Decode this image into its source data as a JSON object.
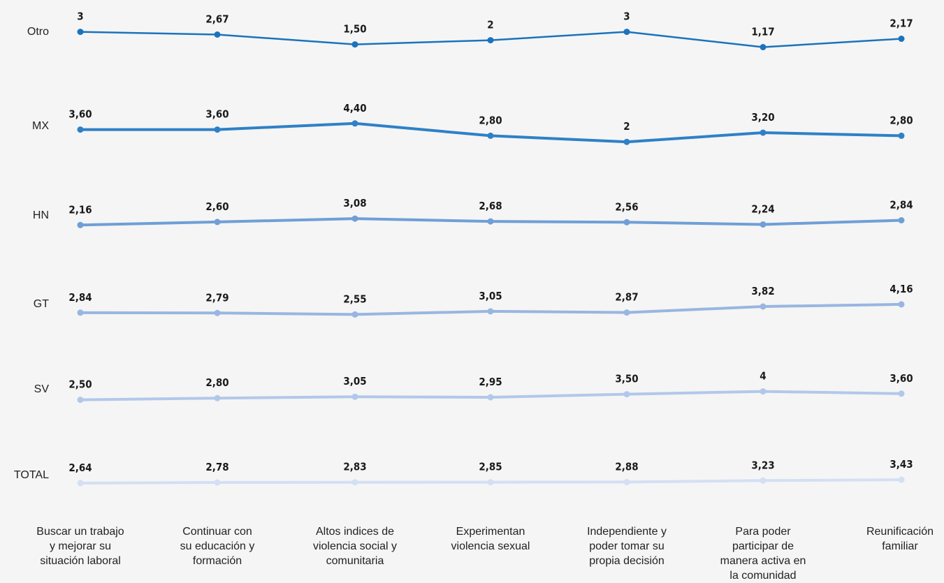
{
  "chart_data": {
    "type": "line",
    "title": "",
    "xlabel": "",
    "ylabel": "",
    "grid": false,
    "legend": "none",
    "categories": [
      [
        "Buscar un trabajo",
        "y mejorar su",
        "situación laboral"
      ],
      [
        "Continuar con",
        "su educación y",
        "formación"
      ],
      [
        "Altos indices de",
        "violencia social y",
        "comunitaria"
      ],
      [
        "Experimentan",
        "violencia sexual"
      ],
      [
        "Independiente y",
        "poder tomar su",
        "propia decisión"
      ],
      [
        "Para poder",
        "participar de",
        "manera activa en",
        "la comunidad"
      ],
      [
        "Reunificación",
        "familiar"
      ]
    ],
    "series": [
      {
        "name": "Otro",
        "color": "#1a73bd",
        "values": [
          3,
          2.67,
          1.5,
          2,
          3,
          1.17,
          2.17
        ],
        "labels": [
          "3",
          "2,67",
          "1,50",
          "2",
          "3",
          "1,17",
          "2,17"
        ]
      },
      {
        "name": "MX",
        "color": "#2e81c6",
        "values": [
          3.6,
          3.6,
          4.4,
          2.8,
          2,
          3.2,
          2.8
        ],
        "labels": [
          "3,60",
          "3,60",
          "4,40",
          "2,80",
          "2",
          "3,20",
          "2,80"
        ]
      },
      {
        "name": "HN",
        "color": "#6f9fd6",
        "values": [
          2.16,
          2.6,
          3.08,
          2.68,
          2.56,
          2.24,
          2.84
        ],
        "labels": [
          "2,16",
          "2,60",
          "3,08",
          "2,68",
          "2,56",
          "2,24",
          "2,84"
        ]
      },
      {
        "name": "GT",
        "color": "#98b6e1",
        "values": [
          2.84,
          2.79,
          2.55,
          3.05,
          2.87,
          3.82,
          4.16
        ],
        "labels": [
          "2,84",
          "2,79",
          "2,55",
          "3,05",
          "2,87",
          "3,82",
          "4,16"
        ]
      },
      {
        "name": "SV",
        "color": "#b2c8ea",
        "values": [
          2.5,
          2.8,
          3.05,
          2.95,
          3.5,
          4,
          3.6
        ],
        "labels": [
          "2,50",
          "2,80",
          "3,05",
          "2,95",
          "3,50",
          "4",
          "3,60"
        ]
      },
      {
        "name": "TOTAL",
        "color": "#d3dff4",
        "values": [
          2.64,
          2.78,
          2.83,
          2.85,
          2.88,
          3.23,
          3.43
        ],
        "labels": [
          "2,64",
          "2,78",
          "2,83",
          "2,85",
          "2,88",
          "3,23",
          "3,43"
        ]
      }
    ]
  }
}
